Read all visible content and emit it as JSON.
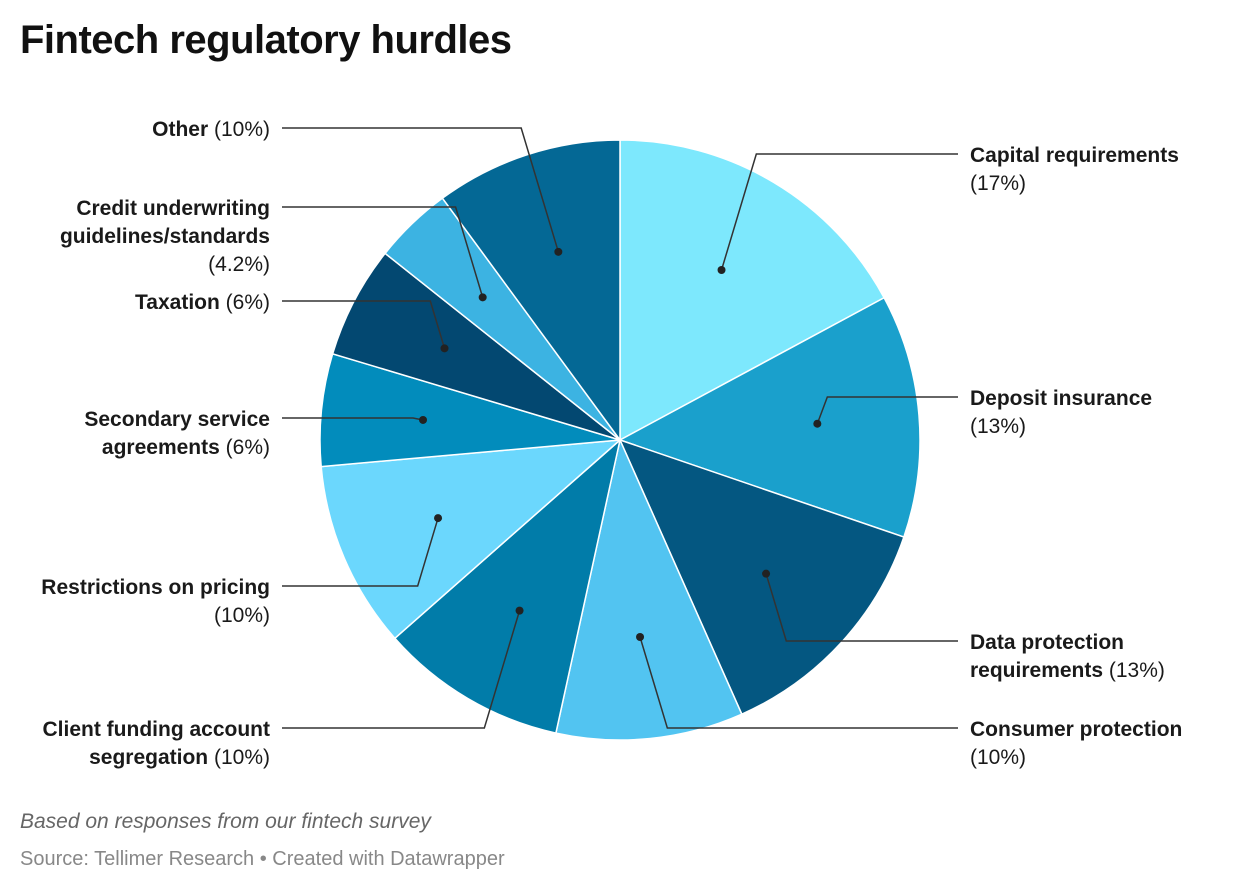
{
  "chart_data": {
    "type": "pie",
    "title": "Fintech regulatory hurdles",
    "slices": [
      {
        "name": "Capital requirements",
        "value": 17,
        "value_label": "(17%)",
        "color": "#7de8fd"
      },
      {
        "name": "Deposit insurance",
        "value": 13,
        "value_label": "(13%)",
        "color": "#1aa0cc"
      },
      {
        "name": "Data protection requirements",
        "value": 13,
        "value_label": "(13%)",
        "color": "#045781"
      },
      {
        "name": "Consumer protection",
        "value": 10,
        "value_label": "(10%)",
        "color": "#52c4f1"
      },
      {
        "name": "Client funding account segregation",
        "value": 10,
        "value_label": "(10%)",
        "color": "#017ca9"
      },
      {
        "name": "Restrictions on pricing",
        "value": 10,
        "value_label": "(10%)",
        "color": "#6bd7fd"
      },
      {
        "name": "Secondary service agreements",
        "value": 6,
        "value_label": "(6%)",
        "color": "#028cbc"
      },
      {
        "name": "Taxation",
        "value": 6,
        "value_label": "(6%)",
        "color": "#034871"
      },
      {
        "name": "Credit underwriting guidelines/standards",
        "value": 4.2,
        "value_label": "(4.2%)",
        "color": "#3cb3e2"
      },
      {
        "name": "Other",
        "value": 10,
        "value_label": "(10%)",
        "color": "#046895"
      }
    ],
    "start_angle": "top",
    "direction": "clockwise",
    "footnote": "Based on responses from our fintech survey",
    "source": "Source: Tellimer Research • Created with Datawrapper"
  }
}
